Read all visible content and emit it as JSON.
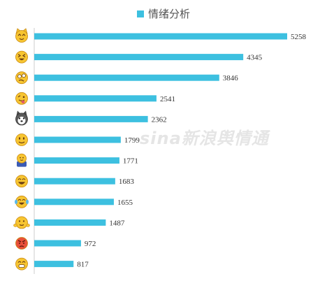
{
  "legend": {
    "label": "情绪分析",
    "color": "#3dc0e0"
  },
  "watermark": "sina新浪舆情通",
  "chart_data": {
    "type": "bar",
    "orientation": "horizontal",
    "categories": [
      "cat-face",
      "squint-face",
      "slanted-face",
      "tongue-face",
      "husky-face",
      "smile-face",
      "fingers-crossed",
      "laughing-face",
      "tears-of-joy",
      "shrug-face",
      "angry-face",
      "grin-face"
    ],
    "icons": [
      "cat-face-icon",
      "squint-face-icon",
      "slanted-face-icon",
      "tongue-face-icon",
      "husky-face-icon",
      "smile-face-icon",
      "fingers-crossed-icon",
      "laughing-face-icon",
      "tears-of-joy-icon",
      "shrug-face-icon",
      "angry-face-icon",
      "grin-face-icon"
    ],
    "series": [
      {
        "values": [
          5258,
          4345,
          3846,
          2541,
          2362,
          1799,
          1771,
          1683,
          1655,
          1487,
          972,
          817
        ]
      }
    ],
    "xlim": [
      0,
      5258
    ],
    "grid": false,
    "bar_color": "#3dc0e0",
    "legend_position": "top-center"
  }
}
